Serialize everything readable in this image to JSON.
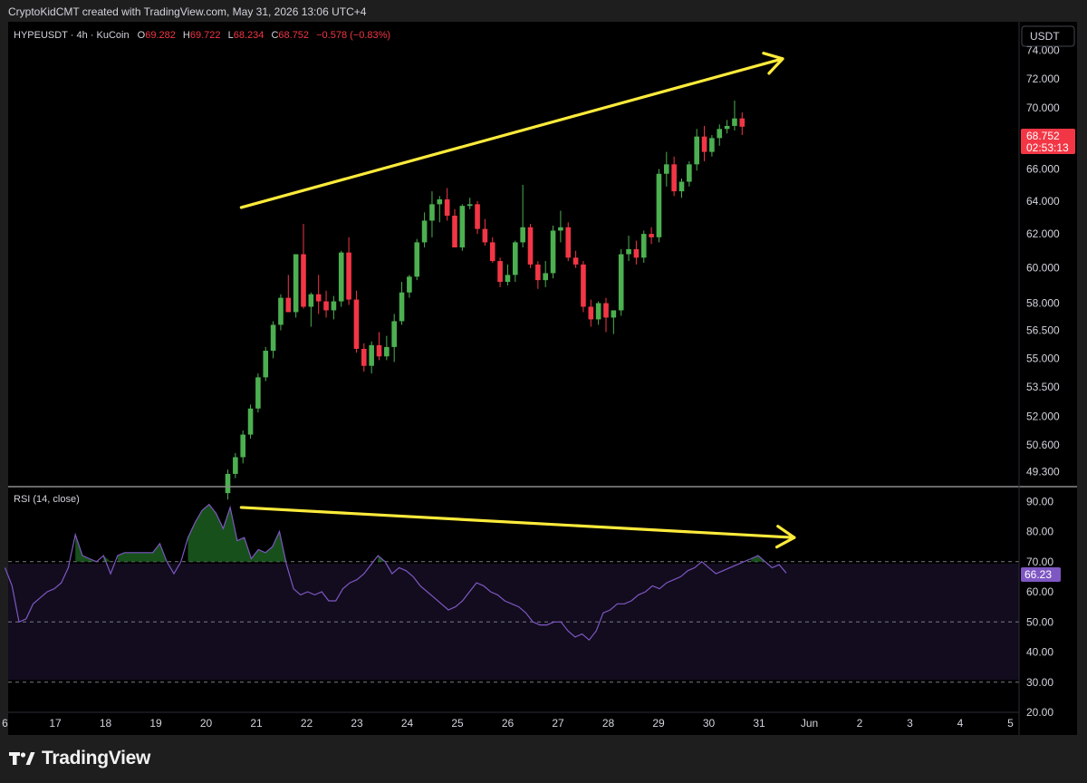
{
  "header": {
    "attribution": "CryptoKidCMT created with TradingView.com, May 31, 2026 13:06 UTC+4"
  },
  "legend": {
    "symbol": "HYPEUSDT · 4h · KuCoin",
    "o_label": "O",
    "o_value": "69.282",
    "h_label": "H",
    "h_value": "69.722",
    "l_label": "L",
    "l_value": "68.234",
    "c_label": "C",
    "c_value": "68.752",
    "change": "−0.578 (−0.83%)"
  },
  "currency_button": "USDT",
  "last_price": {
    "value": "68.752",
    "countdown": "02:53:13"
  },
  "rsi": {
    "label": "RSI (14, close)",
    "last_value": "66.23"
  },
  "footer": {
    "brand": "TradingView"
  },
  "colors": {
    "up": "#26a69a",
    "up_body": "#4caf50",
    "down": "#f23645",
    "rsi_line": "#7e57c2",
    "arrow": "#ffeb3b",
    "background": "#000000"
  },
  "chart_data": [
    {
      "type": "candlestick",
      "title": "HYPEUSDT · 4h · KuCoin",
      "y_ticks": [
        "74.000",
        "72.000",
        "70.000",
        "68.000",
        "66.000",
        "64.000",
        "62.000",
        "60.000",
        "58.000",
        "56.500",
        "55.000",
        "53.500",
        "52.000",
        "50.600",
        "49.300"
      ],
      "y_tick_values": [
        74,
        72,
        70,
        68,
        66,
        64,
        62,
        60,
        58,
        56.5,
        55,
        53.5,
        52,
        50.6,
        49.3
      ],
      "y_scale": "log",
      "ylim": [
        48.6,
        75.8
      ],
      "x_ticks": [
        "6",
        "17",
        "18",
        "19",
        "20",
        "21",
        "22",
        "23",
        "24",
        "25",
        "26",
        "27",
        "28",
        "29",
        "30",
        "31",
        "Jun",
        "2",
        "3",
        "4",
        "5"
      ],
      "candles_ohlc": [
        [
          48.3,
          49.4,
          48.0,
          49.2
        ],
        [
          49.2,
          50.2,
          49.0,
          50.0
        ],
        [
          50.0,
          51.3,
          49.7,
          51.1
        ],
        [
          51.1,
          52.6,
          50.9,
          52.4
        ],
        [
          52.4,
          54.2,
          52.2,
          54.0
        ],
        [
          54.0,
          55.6,
          53.8,
          55.4
        ],
        [
          55.4,
          57.0,
          55.0,
          56.8
        ],
        [
          56.8,
          58.5,
          56.5,
          58.3
        ],
        [
          58.3,
          59.6,
          57.6,
          57.5
        ],
        [
          57.5,
          60.8,
          57.2,
          60.8
        ],
        [
          60.8,
          62.6,
          57.7,
          57.8
        ],
        [
          57.8,
          58.6,
          56.7,
          58.5
        ],
        [
          58.5,
          59.6,
          57.4,
          58.1
        ],
        [
          58.1,
          58.7,
          57.2,
          57.6
        ],
        [
          57.6,
          58.4,
          57.1,
          58.1
        ],
        [
          58.1,
          61.0,
          57.8,
          60.9
        ],
        [
          60.9,
          61.8,
          57.9,
          58.2
        ],
        [
          58.2,
          58.7,
          55.3,
          55.5
        ],
        [
          55.5,
          55.8,
          54.3,
          54.6
        ],
        [
          54.6,
          55.9,
          54.2,
          55.7
        ],
        [
          55.7,
          56.4,
          54.9,
          55.1
        ],
        [
          55.1,
          56.2,
          54.9,
          55.6
        ],
        [
          55.6,
          57.4,
          54.8,
          57.0
        ],
        [
          57.0,
          59.2,
          56.8,
          58.6
        ],
        [
          58.6,
          59.6,
          58.3,
          59.5
        ],
        [
          59.5,
          61.7,
          59.3,
          61.5
        ],
        [
          61.5,
          63.3,
          61.2,
          62.8
        ],
        [
          62.8,
          64.6,
          61.8,
          63.8
        ],
        [
          63.8,
          64.3,
          62.7,
          64.1
        ],
        [
          64.1,
          64.8,
          62.8,
          63.1
        ],
        [
          63.1,
          63.5,
          61.4,
          61.2
        ],
        [
          61.2,
          63.8,
          61.0,
          63.7
        ],
        [
          63.7,
          64.2,
          63.5,
          63.8
        ],
        [
          63.8,
          64.0,
          62.0,
          62.3
        ],
        [
          62.3,
          62.9,
          61.3,
          61.5
        ],
        [
          61.5,
          61.8,
          60.3,
          60.4
        ],
        [
          60.4,
          60.6,
          58.9,
          59.2
        ],
        [
          59.2,
          60.2,
          59.0,
          59.6
        ],
        [
          59.6,
          61.6,
          59.2,
          61.5
        ],
        [
          61.5,
          65.0,
          61.2,
          62.4
        ],
        [
          62.4,
          62.6,
          60.0,
          60.2
        ],
        [
          60.2,
          60.4,
          58.8,
          59.3
        ],
        [
          59.3,
          60.4,
          58.9,
          59.7
        ],
        [
          59.7,
          62.5,
          59.4,
          62.2
        ],
        [
          62.2,
          63.4,
          61.5,
          62.4
        ],
        [
          62.4,
          62.7,
          60.4,
          60.6
        ],
        [
          60.6,
          61.0,
          60.0,
          60.2
        ],
        [
          60.2,
          60.4,
          57.5,
          57.8
        ],
        [
          57.8,
          58.2,
          56.7,
          57.1
        ],
        [
          57.1,
          58.1,
          56.8,
          58.0
        ],
        [
          58.0,
          58.3,
          56.4,
          57.2
        ],
        [
          57.2,
          57.6,
          56.3,
          57.6
        ],
        [
          57.6,
          61.1,
          57.3,
          60.8
        ],
        [
          60.8,
          61.9,
          60.4,
          61.1
        ],
        [
          61.1,
          61.6,
          60.2,
          60.6
        ],
        [
          60.6,
          62.2,
          60.3,
          62.0
        ],
        [
          62.0,
          62.4,
          61.4,
          61.8
        ],
        [
          61.8,
          66.0,
          61.5,
          65.7
        ],
        [
          65.7,
          67.1,
          64.9,
          66.3
        ],
        [
          66.3,
          66.8,
          64.3,
          64.6
        ],
        [
          64.6,
          65.4,
          64.2,
          65.2
        ],
        [
          65.2,
          66.5,
          64.9,
          66.3
        ],
        [
          66.3,
          68.6,
          65.9,
          68.1
        ],
        [
          68.1,
          68.8,
          66.5,
          67.1
        ],
        [
          67.1,
          68.2,
          66.8,
          68.0
        ],
        [
          68.0,
          68.9,
          67.5,
          68.6
        ],
        [
          68.6,
          69.2,
          68.3,
          68.8
        ],
        [
          68.8,
          70.5,
          68.5,
          69.3
        ],
        [
          69.3,
          69.7,
          68.2,
          68.75
        ]
      ],
      "annotations": [
        {
          "kind": "arrow",
          "from_index": 20.7,
          "from_price": 63.6,
          "to_index": 22.6,
          "to_price": 73.4
        }
      ]
    },
    {
      "type": "line",
      "title": "RSI (14, close)",
      "y_ticks": [
        "90.00",
        "80.00",
        "70.00",
        "60.00",
        "50.00",
        "40.00",
        "30.00",
        "20.00"
      ],
      "y_tick_values": [
        90,
        80,
        70,
        60,
        50,
        40,
        30,
        20
      ],
      "ylim": [
        20,
        94
      ],
      "bands": {
        "upper": 70,
        "middle": 50,
        "lower": 30
      },
      "x_ticks": [
        "6",
        "17",
        "18",
        "19",
        "20",
        "21",
        "22",
        "23",
        "24",
        "25",
        "26",
        "27",
        "28",
        "29",
        "30",
        "31",
        "Jun",
        "2",
        "3",
        "4",
        "5"
      ],
      "x": [
        16.0,
        16.14,
        16.28,
        16.42,
        16.56,
        16.7,
        16.84,
        16.98,
        17.12,
        17.26,
        17.4,
        17.54,
        17.68,
        17.82,
        17.96,
        18.1,
        18.24,
        18.38,
        18.52,
        18.66,
        18.8,
        18.94,
        19.08,
        19.22,
        19.36,
        19.5,
        19.64,
        19.78,
        19.92,
        20.06,
        20.2,
        20.34,
        20.48,
        20.62,
        20.76,
        20.9,
        21.04,
        21.18,
        21.32,
        21.46,
        21.6,
        21.74,
        21.88,
        22.02,
        22.16,
        22.3,
        22.44,
        22.58,
        22.72,
        22.86,
        23.0,
        23.14,
        23.28,
        23.42,
        23.56,
        23.7,
        23.84,
        23.98,
        24.12,
        24.26,
        24.4,
        24.54,
        24.68,
        24.82,
        24.96,
        25.1,
        25.24,
        25.38,
        25.52,
        25.66,
        25.8,
        25.94,
        26.08,
        26.22,
        26.36,
        26.5,
        26.64,
        26.78,
        26.92,
        27.06,
        27.2,
        27.34,
        27.48,
        27.62,
        27.76,
        27.9,
        28.04,
        28.18,
        28.32,
        28.46,
        28.6,
        28.74,
        28.88,
        29.02,
        29.16,
        29.3,
        29.44,
        29.58,
        29.72,
        29.86,
        30.0,
        30.14,
        30.28,
        30.42,
        30.56,
        30.7,
        30.84,
        30.98,
        31.12,
        31.26,
        31.4,
        31.54
      ],
      "values": [
        68,
        62,
        50,
        51,
        56,
        58,
        60,
        61,
        63,
        68,
        79,
        72,
        71,
        70,
        72,
        66,
        72,
        73,
        73,
        73,
        73,
        73,
        76,
        70,
        66,
        70,
        78,
        83,
        87,
        89,
        86,
        81,
        88,
        77,
        78,
        71,
        74,
        73,
        75,
        80,
        69,
        61,
        59,
        60,
        59,
        60,
        57,
        57,
        61,
        63,
        64,
        66,
        69,
        72,
        70,
        66,
        68,
        67,
        65,
        62,
        60,
        58,
        56,
        54,
        55,
        57,
        60,
        63,
        62,
        60,
        59,
        57,
        56,
        55,
        53,
        50,
        49,
        49,
        50,
        50,
        47,
        45,
        46,
        44,
        47,
        53,
        54,
        56,
        56,
        57,
        59,
        60,
        62,
        61,
        63,
        64,
        65,
        67,
        68,
        70,
        68,
        66,
        67,
        68,
        69,
        70,
        71,
        72,
        70,
        68,
        69,
        66.23
      ],
      "annotations": [
        {
          "kind": "arrow",
          "from_index": 20.7,
          "from_rsi": 88,
          "to_index": 31.7,
          "to_rsi": 78
        }
      ]
    }
  ]
}
